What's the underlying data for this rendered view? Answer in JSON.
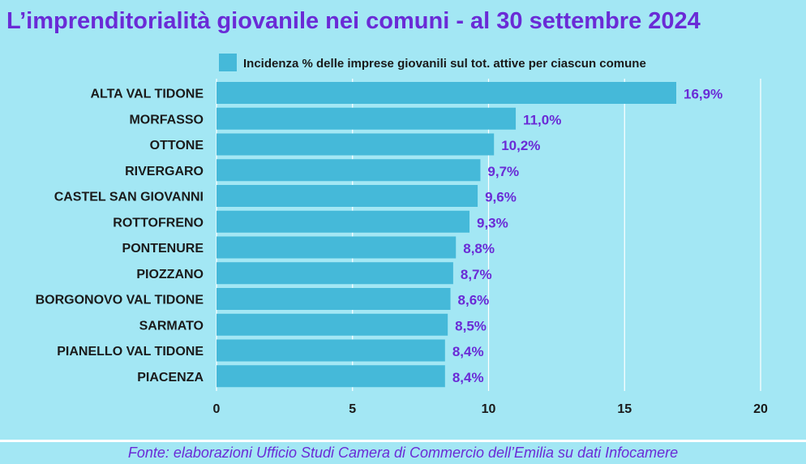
{
  "title": "L’imprenditorialità giovanile nei comuni  - al 30 settembre 2024",
  "source": "Fonte: elaborazioni Ufficio Studi Camera di Commercio dell’Emilia su dati Infocamere",
  "colors": {
    "background": "#a3e7f4",
    "bar": "#45b9d9",
    "value_label": "#6a2bd6",
    "title": "#6a2bd6"
  },
  "chart_data": {
    "type": "bar",
    "orientation": "horizontal",
    "categories": [
      "ALTA VAL TIDONE",
      "MORFASSO",
      "OTTONE",
      "RIVERGARO",
      "CASTEL SAN GIOVANNI",
      "ROTTOFRENO",
      "PONTENURE",
      "PIOZZANO",
      "BORGONOVO VAL TIDONE",
      "SARMATO",
      "PIANELLO VAL TIDONE",
      "PIACENZA"
    ],
    "series": [
      {
        "name": "Incidenza % delle imprese giovanili sul tot. attive per ciascun comune",
        "values": [
          16.9,
          11.0,
          10.2,
          9.7,
          9.6,
          9.3,
          8.8,
          8.7,
          8.6,
          8.5,
          8.4,
          8.4
        ],
        "data_labels": [
          "16,9%",
          "11,0%",
          "10,2%",
          "9,7%",
          "9,6%",
          "9,3%",
          "8,8%",
          "8,7%",
          "8,6%",
          "8,5%",
          "8,4%",
          "8,4%"
        ]
      }
    ],
    "xlim": [
      0,
      20
    ],
    "x_ticks": [
      0,
      5,
      10,
      15,
      20
    ],
    "x_tick_labels": [
      "0",
      "5",
      "10",
      "15",
      "20"
    ],
    "grid": "vertical",
    "legend_position": "top"
  }
}
